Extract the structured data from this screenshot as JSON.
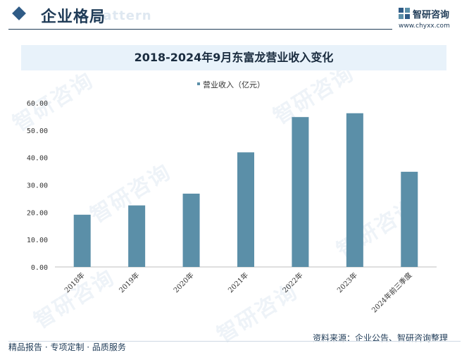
{
  "header": {
    "title": "企业格局",
    "ghost_text": "e pattern",
    "brand_name": "智研咨询",
    "brand_url": "www.chyxx.com"
  },
  "watermark_text": "智研咨询",
  "footer": {
    "left": "精品报告 · 专项定制 · 品质服务",
    "right": "资料来源：企业公告、智研咨询整理"
  },
  "chart_data": {
    "type": "bar",
    "title": "2018-2024年9月东富龙营业收入变化",
    "categories": [
      "2018年",
      "2019年",
      "2020年",
      "2021年",
      "2022年",
      "2023年",
      "2024年前三季度"
    ],
    "series": [
      {
        "name": "营业收入（亿元）",
        "values": [
          19.1,
          22.5,
          26.8,
          41.9,
          54.8,
          56.2,
          34.8
        ]
      }
    ],
    "ylim": [
      0,
      60
    ],
    "yticks": [
      "0.00",
      "10.00",
      "20.00",
      "30.00",
      "40.00",
      "50.00",
      "60.00"
    ],
    "grid": false,
    "legend": "top-center",
    "bar_color": "#5b8fa8"
  }
}
